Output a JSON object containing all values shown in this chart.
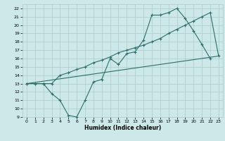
{
  "xlabel": "Humidex (Indice chaleur)",
  "bg_color": "#cce8e8",
  "grid_color": "#aacccc",
  "line_color": "#2e6e6a",
  "xlim": [
    -0.5,
    23.5
  ],
  "ylim": [
    9,
    22.5
  ],
  "xticks": [
    0,
    1,
    2,
    3,
    4,
    5,
    6,
    7,
    8,
    9,
    10,
    11,
    12,
    13,
    14,
    15,
    16,
    17,
    18,
    19,
    20,
    21,
    22,
    23
  ],
  "yticks": [
    9,
    10,
    11,
    12,
    13,
    14,
    15,
    16,
    17,
    18,
    19,
    20,
    21,
    22
  ],
  "line1_x": [
    0,
    1,
    2,
    3,
    4,
    5,
    6,
    7,
    8,
    9,
    10,
    11,
    12,
    13,
    14,
    15,
    16,
    17,
    18,
    19,
    20,
    21,
    22,
    23
  ],
  "line1_y": [
    13.0,
    13.0,
    13.0,
    11.8,
    11.0,
    9.2,
    9.0,
    11.0,
    13.2,
    13.5,
    16.0,
    15.3,
    16.6,
    16.8,
    18.2,
    21.2,
    21.2,
    21.5,
    22.0,
    20.8,
    19.3,
    17.7,
    16.0,
    null
  ],
  "line2_x": [
    0,
    1,
    2,
    3,
    4,
    5,
    6,
    7,
    8,
    9,
    10,
    11,
    12,
    13,
    14,
    15,
    16,
    17,
    18,
    19,
    20,
    21,
    22,
    23
  ],
  "line2_y": [
    13.0,
    13.0,
    13.0,
    13.0,
    14.0,
    14.3,
    14.7,
    15.0,
    15.5,
    15.8,
    16.2,
    16.7,
    17.0,
    17.3,
    17.6,
    18.0,
    18.4,
    19.0,
    19.5,
    20.0,
    20.5,
    21.0,
    21.5,
    16.3
  ],
  "line3_x": [
    0,
    23
  ],
  "line3_y": [
    13.0,
    16.3
  ]
}
